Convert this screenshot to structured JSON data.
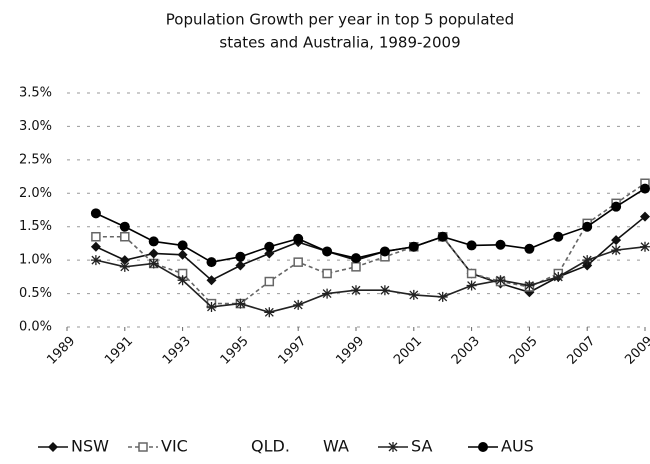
{
  "chart_data": {
    "type": "line",
    "title": [
      "Population Growth per year in top 5 populated",
      "states and Australia, 1989-2009"
    ],
    "x": [
      1990,
      1991,
      1992,
      1993,
      1994,
      1995,
      1996,
      1997,
      1998,
      1999,
      2000,
      2001,
      2002,
      2003,
      2004,
      2005,
      2006,
      2007,
      2008,
      2009
    ],
    "xlim": [
      1989,
      2009
    ],
    "xticks": [
      1989,
      1991,
      1993,
      1995,
      1997,
      1999,
      2001,
      2003,
      2005,
      2007,
      2009
    ],
    "ylim": [
      0,
      3.5
    ],
    "yticks": [
      {
        "value": 0,
        "label": "0.0%"
      },
      {
        "value": 0.5,
        "label": "0.5%"
      },
      {
        "value": 1,
        "label": "1.0%"
      },
      {
        "value": 1.5,
        "label": "1.5%"
      },
      {
        "value": 2,
        "label": "2.0%"
      },
      {
        "value": 2.5,
        "label": "2.5%"
      },
      {
        "value": 3,
        "label": "3.0%"
      },
      {
        "value": 3.5,
        "label": "3.5%"
      }
    ],
    "grid": true,
    "legend": "bottom",
    "series": [
      {
        "name": "NSW",
        "color": "#111111",
        "marker": "diamond",
        "values": [
          1.2,
          1.0,
          1.1,
          1.08,
          0.7,
          0.92,
          1.1,
          1.27,
          1.13,
          1.0,
          1.13,
          1.2,
          1.35,
          0.8,
          0.65,
          0.52,
          0.75,
          0.92,
          1.3,
          1.65
        ]
      },
      {
        "name": "VIC",
        "color": "#666666",
        "marker": "square",
        "values": [
          1.35,
          1.35,
          0.95,
          0.8,
          0.35,
          0.35,
          0.68,
          0.97,
          0.8,
          0.9,
          1.05,
          1.2,
          1.35,
          0.8,
          0.68,
          0.6,
          0.8,
          1.55,
          1.85,
          2.15
        ]
      },
      {
        "name": "QLD.",
        "color": "#ffffff",
        "marker": "none",
        "values": [
          null,
          null,
          null,
          null,
          null,
          null,
          null,
          null,
          null,
          null,
          null,
          null,
          null,
          null,
          null,
          null,
          null,
          null,
          null,
          null
        ]
      },
      {
        "name": "WA",
        "color": "#ffffff",
        "marker": "none",
        "values": [
          null,
          null,
          null,
          null,
          null,
          null,
          null,
          null,
          null,
          null,
          null,
          null,
          null,
          null,
          null,
          null,
          null,
          null,
          null,
          null
        ]
      },
      {
        "name": "SA",
        "color": "#222222",
        "marker": "star",
        "values": [
          1.0,
          0.9,
          0.95,
          0.7,
          0.3,
          0.35,
          0.22,
          0.33,
          0.5,
          0.55,
          0.55,
          0.48,
          0.45,
          0.62,
          0.7,
          0.62,
          0.75,
          1.0,
          1.15,
          1.2
        ]
      },
      {
        "name": "AUS",
        "color": "#000000",
        "marker": "circle",
        "values": [
          1.7,
          1.5,
          1.28,
          1.22,
          0.97,
          1.05,
          1.2,
          1.32,
          1.13,
          1.03,
          1.13,
          1.2,
          1.35,
          1.22,
          1.23,
          1.17,
          1.35,
          1.5,
          1.8,
          2.07
        ]
      }
    ]
  }
}
